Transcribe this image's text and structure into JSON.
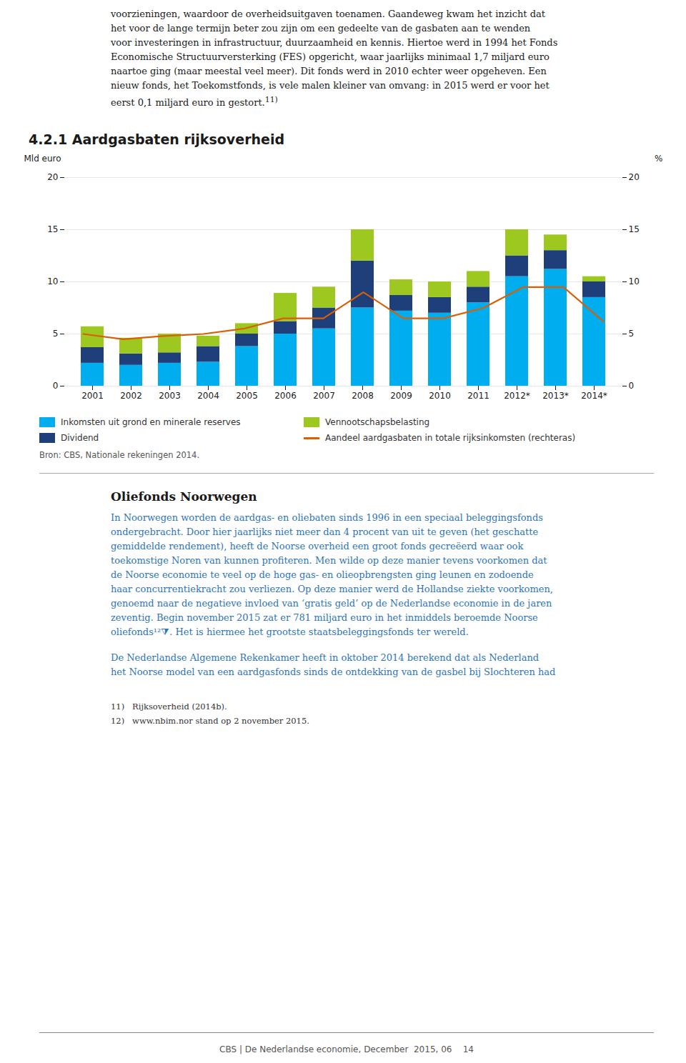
{
  "text_before": {
    "lines": [
      "voorzieningen, waardoor de overheidsuitgaven toenamen. Gaandeweg kwam het inzicht dat",
      "het voor de lange termijn beter zou zijn om een gedeelte van de gasbaten aan te wenden",
      "voor investeringen in infrastructuur, duurzaamheid en kennis. Hiertoe werd in 1994 het Fonds",
      "Economische Structuurversterking (FES) opgericht, waar jaarlijks minimaal 1,7 miljard euro",
      "naartoe ging (maar meestal veel meer). Dit fonds werd in 2010 echter weer opgeheven. Een",
      "nieuw fonds, het Toekomstfonds, is vele malen kleiner van omvang: in 2015 werd er voor het",
      "eerst 0,1 miljard euro in gestort."
    ],
    "superscript": "11)"
  },
  "chart_data": {
    "type": "bar",
    "title": "4.2.1  Aardgasbaten rijksoverheid",
    "stacked": true,
    "grid": true,
    "legend": "bottom",
    "ylabel": "Mld euro",
    "y2label": "%",
    "categories": [
      "2001",
      "2002",
      "2003",
      "2004",
      "2005",
      "2006",
      "2007",
      "2008",
      "2009",
      "2010",
      "2011",
      "2012*",
      "2013*",
      "2014*"
    ],
    "series": [
      {
        "name": "Inkomsten uit grond en minerale reserves",
        "type": "bar",
        "color": "#00AEEF",
        "values": [
          2.2,
          2.0,
          2.2,
          2.3,
          3.8,
          5.0,
          5.5,
          7.5,
          7.2,
          7.0,
          8.0,
          10.5,
          11.2,
          8.5
        ]
      },
      {
        "name": "Dividend",
        "type": "bar",
        "color": "#1F3F7A",
        "values": [
          1.5,
          1.1,
          1.0,
          1.5,
          1.2,
          1.2,
          2.0,
          4.5,
          1.5,
          1.5,
          1.5,
          2.0,
          1.8,
          1.5
        ]
      },
      {
        "name": "Vennootschapsbelasting",
        "type": "bar",
        "color": "#9DC820",
        "values": [
          2.0,
          1.5,
          1.8,
          1.0,
          1.0,
          2.7,
          2.0,
          3.0,
          1.5,
          1.5,
          1.5,
          2.5,
          1.5,
          0.5
        ]
      },
      {
        "name": "Aandeel aardgasbaten in totale rijksinkomsten (rechteras)",
        "type": "line",
        "axis": "y2",
        "color": "#D95F02",
        "values": [
          5.0,
          4.5,
          4.8,
          5.0,
          5.5,
          6.5,
          6.5,
          9.0,
          6.5,
          6.5,
          7.5,
          9.5,
          9.5,
          6.2
        ]
      }
    ],
    "ylim": [
      0,
      20
    ],
    "yticks": [
      0,
      5,
      10,
      15,
      20
    ],
    "y2lim": [
      0,
      20
    ],
    "y2ticks": [
      0,
      5,
      10,
      15,
      20
    ],
    "source": "Bron: CBS, Nationale rekeningen 2014."
  },
  "text_after": {
    "title": "Oliefonds Noorwegen",
    "paragraphs": [
      [
        "In Noorwegen worden de aardgas- en oliebaten sinds 1996 in een speciaal beleggingsfonds",
        "ondergebracht. Door hier jaarlijks niet meer dan 4 procent van uit te geven (het geschatte",
        "gemiddelde rendement), heeft de Noorse overheid een groot fonds gecreëerd waar ook",
        "toekomstige Noren van kunnen profiteren. Men wilde op deze manier tevens voorkomen dat",
        "de Noorse economie te veel op de hoge gas- en olieopbrengsten ging leunen en zodoende",
        "haar concurrentiekracht zou verliezen. Op deze manier werd de Hollandse ziekte voorkomen,",
        "genoemd naar de negatieve invloed van ‘gratis geld’ op de Nederlandse economie in de jaren",
        "zeventig. Begin november 2015 zat er 781 miljard euro in het inmiddels beroemde Noorse",
        "oliefonds¹²⧩. Het is hiermee het grootste staatsbeleggingsfonds ter wereld."
      ],
      [
        "De Nederlandse Algemene Rekenkamer heeft in oktober 2014 berekend dat als Nederland",
        "het Noorse model van een aardgasfonds sinds de ontdekking van de gasbel bij Slochteren had"
      ]
    ]
  },
  "footnotes": [
    "11)   Rijksoverheid (2014b).",
    "12)   www.nbim.nor stand op 2 november 2015."
  ],
  "footer": "CBS | De Nederlandse economie, December  2015, 06    14"
}
